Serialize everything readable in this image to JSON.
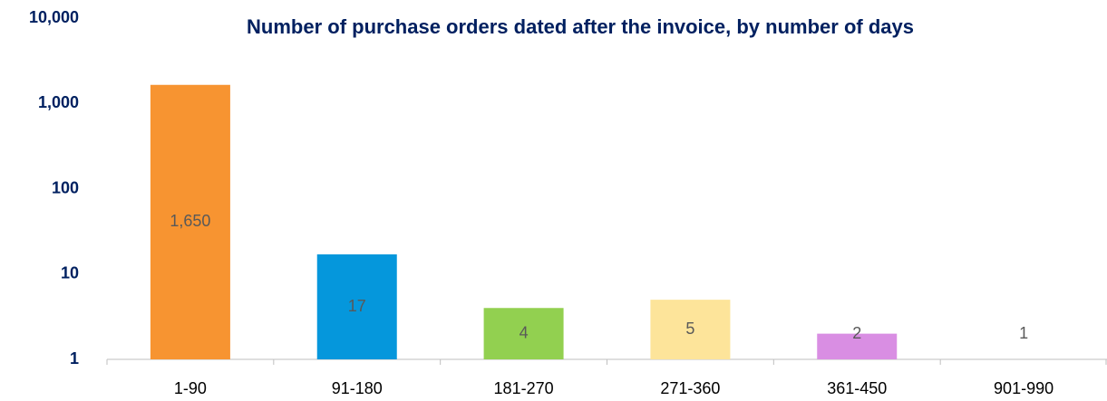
{
  "chart_data": {
    "type": "bar",
    "title": "Number of purchase orders dated after the invoice, by number of days",
    "categories": [
      "1-90",
      "91-180",
      "181-270",
      "271-360",
      "361-450",
      "901-990"
    ],
    "values": [
      1650,
      17,
      4,
      5,
      2,
      1
    ],
    "value_labels": [
      "1,650",
      "17",
      "4",
      "5",
      "2",
      "1"
    ],
    "colors": [
      "#f79431",
      "#0597dc",
      "#92d050",
      "#fde49a",
      "#d98ee3",
      "#bfbfbf"
    ],
    "log_scale": true,
    "ylim": [
      1,
      10000
    ],
    "yticks": [
      1,
      10,
      100,
      {
        "value": 1000,
        "label": "1,000"
      },
      {
        "value": 10000,
        "label": "10,000"
      }
    ],
    "grid": false
  }
}
